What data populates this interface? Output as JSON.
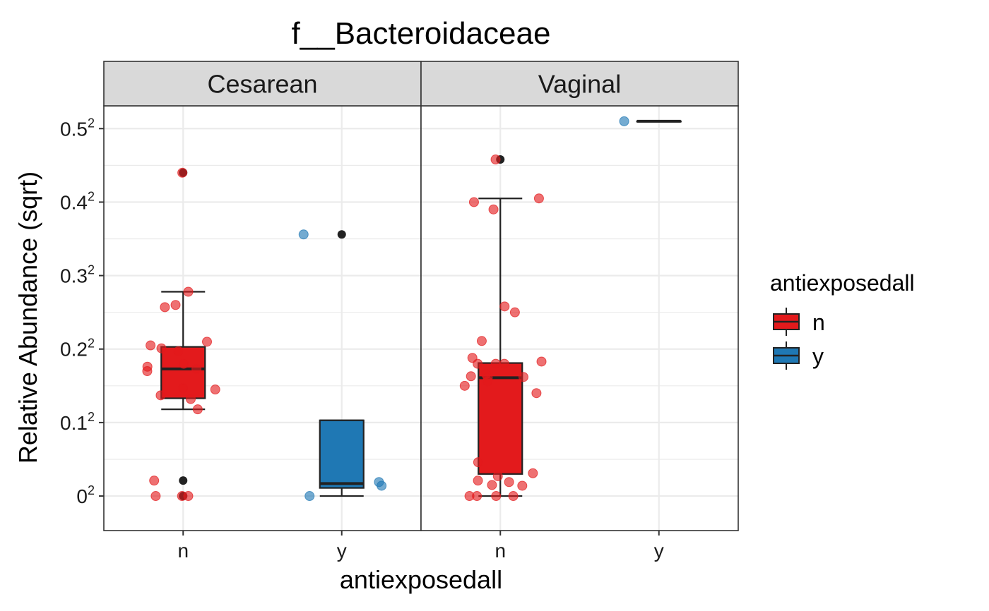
{
  "chart_data": {
    "type": "box",
    "title": "f__Bacteroidaceae",
    "xlabel": "antiexposedall",
    "ylabel": "Relative Abundance (sqrt)",
    "y_scale": "sqrt",
    "y_ticks": [
      {
        "value": 0.0,
        "base": "0",
        "exp": "2"
      },
      {
        "value": 0.1,
        "base": "0.1",
        "exp": "2"
      },
      {
        "value": 0.2,
        "base": "0.2",
        "exp": "2"
      },
      {
        "value": 0.3,
        "base": "0.3",
        "exp": "2"
      },
      {
        "value": 0.4,
        "base": "0.4",
        "exp": "2"
      },
      {
        "value": 0.5,
        "base": "0.5",
        "exp": "2"
      }
    ],
    "ylim_sqrt": [
      -0.047,
      0.531
    ],
    "grid": true,
    "legend": {
      "title": "antiexposedall",
      "position": "right",
      "entries": [
        {
          "label": "n",
          "color": "#E31A1C"
        },
        {
          "label": "y",
          "color": "#1F78B4"
        }
      ]
    },
    "colors": {
      "n": "#E31A1C",
      "y": "#1F78B4",
      "outlier": "#222222",
      "strip_bg": "#D9D9D9",
      "grid": "#EBEBEB"
    },
    "facets": [
      {
        "label": "Cesarean",
        "categories": [
          "n",
          "y"
        ],
        "boxes": [
          {
            "group": "n",
            "whisker_low": 0.118,
            "q1": 0.133,
            "median": 0.173,
            "q3": 0.203,
            "whisker_high": 0.278,
            "outliers": [
              0.44,
              0.021,
              0.0
            ],
            "points": [
              0.44,
              0.278,
              0.205,
              0.201,
              0.197,
              0.18,
              0.176,
              0.145,
              0.132,
              0.26,
              0.257,
              0.21,
              0.173,
              0.17,
              0.147,
              0.137,
              0.118,
              0.021,
              0.0,
              0.0,
              0.0
            ]
          },
          {
            "group": "y",
            "whisker_low": 0.0,
            "q1": 0.011,
            "median": 0.017,
            "q3": 0.103,
            "whisker_high": 0.103,
            "outliers": [
              0.356
            ],
            "points": [
              0.356,
              0.019,
              0.014,
              0.0
            ]
          }
        ]
      },
      {
        "label": "Vaginal",
        "categories": [
          "n",
          "y"
        ],
        "boxes": [
          {
            "group": "n",
            "whisker_low": 0.0,
            "q1": 0.03,
            "median": 0.161,
            "q3": 0.181,
            "whisker_high": 0.405,
            "outliers": [
              0.458
            ],
            "points": [
              0.458,
              0.405,
              0.4,
              0.39,
              0.258,
              0.25,
              0.211,
              0.188,
              0.183,
              0.18,
              0.18,
              0.18,
              0.166,
              0.163,
              0.162,
              0.161,
              0.156,
              0.15,
              0.14,
              0.046,
              0.031,
              0.027,
              0.021,
              0.019,
              0.015,
              0.014,
              0.0,
              0.0,
              0.0,
              0.0
            ]
          },
          {
            "group": "y",
            "whisker_low": 0.51,
            "q1": 0.51,
            "median": 0.51,
            "q3": 0.51,
            "whisker_high": 0.51,
            "outliers": [],
            "points": [
              0.51
            ]
          }
        ]
      }
    ]
  }
}
